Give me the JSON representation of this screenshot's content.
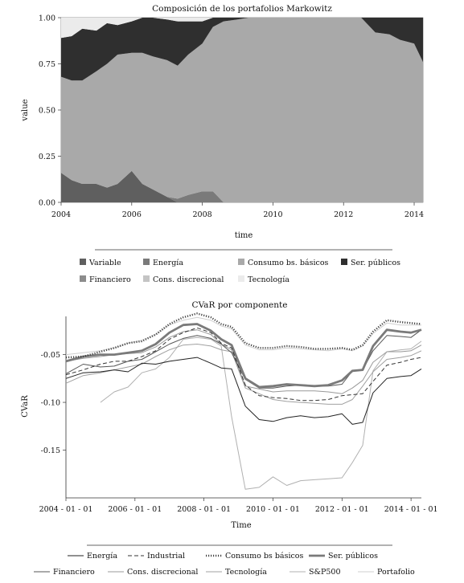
{
  "chart_data": [
    {
      "type": "area",
      "title": "Composición de los portafolios Markowitz",
      "xlabel": "time",
      "ylabel": "value",
      "ylim": [
        0,
        1
      ],
      "xlim": [
        2004,
        2014.25
      ],
      "x_ticks": [
        2004,
        2006,
        2008,
        2010,
        2012,
        2014
      ],
      "y_ticks": [
        "0.00",
        "0.25",
        "0.50",
        "0.75",
        "1.00"
      ],
      "stacked": true,
      "grid": false,
      "legend_placement": "bottom",
      "x": [
        2003.9,
        2004.3,
        2004.6,
        2005.0,
        2005.3,
        2005.6,
        2006.0,
        2006.3,
        2006.6,
        2007.0,
        2007.3,
        2007.6,
        2008.0,
        2008.3,
        2008.6,
        2009.0,
        2009.3,
        2009.6,
        2010.0,
        2010.5,
        2011.0,
        2011.5,
        2012.0,
        2012.5,
        2012.9,
        2013.3,
        2013.6,
        2014.0,
        2014.25
      ],
      "series": [
        {
          "name": "Variable",
          "color": "#5f5f5f",
          "values": [
            0.16,
            0.12,
            0.1,
            0.1,
            0.08,
            0.1,
            0.17,
            0.1,
            0.07,
            0.03,
            0.0,
            0.0,
            0.0,
            0.0,
            0.0,
            0.0,
            0.0,
            0.0,
            0.0,
            0.0,
            0.0,
            0.0,
            0.0,
            0.0,
            0.0,
            0.0,
            0.0,
            0.0,
            0.0
          ]
        },
        {
          "name": "Energía",
          "color": "#7a7a7a",
          "values": [
            0.0,
            0.0,
            0.0,
            0.0,
            0.0,
            0.0,
            0.0,
            0.0,
            0.0,
            0.0,
            0.02,
            0.04,
            0.06,
            0.06,
            0.0,
            0.0,
            0.0,
            0.0,
            0.0,
            0.0,
            0.0,
            0.0,
            0.0,
            0.0,
            0.0,
            0.0,
            0.0,
            0.0,
            0.0
          ]
        },
        {
          "name": "Consumo bs. básicos",
          "color": "#a9a9a9",
          "values": [
            0.52,
            0.54,
            0.56,
            0.61,
            0.67,
            0.7,
            0.64,
            0.71,
            0.72,
            0.74,
            0.72,
            0.76,
            0.8,
            0.89,
            0.98,
            0.99,
            1.0,
            1.0,
            1.0,
            1.0,
            1.0,
            1.0,
            1.0,
            1.0,
            0.92,
            0.91,
            0.88,
            0.86,
            0.76
          ]
        },
        {
          "name": "Ser. públicos",
          "color": "#2f2f2f",
          "values": [
            0.21,
            0.24,
            0.28,
            0.22,
            0.22,
            0.16,
            0.17,
            0.19,
            0.21,
            0.22,
            0.24,
            0.18,
            0.12,
            0.05,
            0.02,
            0.01,
            0.0,
            0.0,
            0.0,
            0.0,
            0.0,
            0.0,
            0.0,
            0.0,
            0.08,
            0.09,
            0.12,
            0.14,
            0.24
          ]
        },
        {
          "name": "Financiero",
          "color": "#8c8c8c",
          "values": [
            0.0,
            0.0,
            0.0,
            0.0,
            0.0,
            0.0,
            0.0,
            0.0,
            0.0,
            0.0,
            0.0,
            0.0,
            0.0,
            0.0,
            0.0,
            0.0,
            0.0,
            0.0,
            0.0,
            0.0,
            0.0,
            0.0,
            0.0,
            0.0,
            0.0,
            0.0,
            0.0,
            0.0,
            0.0
          ]
        },
        {
          "name": "Cons. discrecional",
          "color": "#c4c4c4",
          "values": [
            0.0,
            0.0,
            0.0,
            0.0,
            0.0,
            0.0,
            0.0,
            0.0,
            0.0,
            0.0,
            0.0,
            0.0,
            0.0,
            0.0,
            0.0,
            0.0,
            0.0,
            0.0,
            0.0,
            0.0,
            0.0,
            0.0,
            0.0,
            0.0,
            0.0,
            0.0,
            0.0,
            0.0,
            0.0
          ]
        },
        {
          "name": "Tecnología",
          "color": "#ebebeb",
          "values": [
            0.11,
            0.1,
            0.06,
            0.07,
            0.03,
            0.04,
            0.02,
            0.0,
            0.0,
            0.01,
            0.02,
            0.02,
            0.02,
            0.0,
            0.0,
            0.0,
            0.0,
            0.0,
            0.0,
            0.0,
            0.0,
            0.0,
            0.0,
            0.0,
            0.0,
            0.0,
            0.0,
            0.0,
            0.0
          ]
        }
      ]
    },
    {
      "type": "line",
      "title": "CVaR por componente",
      "xlabel": "Time",
      "ylabel": "CVaR",
      "ylim": [
        -0.2,
        -0.01
      ],
      "xlim": [
        2004,
        2014.3
      ],
      "x_ticks": [
        "2004 - 01 - 01",
        "2006 - 01 - 01",
        "2008 - 01 - 01",
        "2010 - 01 - 01",
        "2012 - 01 - 01",
        "2014 - 01 - 01"
      ],
      "y_ticks": [
        "-0.05",
        "-0.10",
        "-0.15"
      ],
      "grid": false,
      "legend_placement": "bottom",
      "x": [
        2004.0,
        2004.5,
        2005.0,
        2005.4,
        2005.8,
        2006.2,
        2006.6,
        2007.0,
        2007.4,
        2007.8,
        2008.2,
        2008.5,
        2008.8,
        2009.2,
        2009.6,
        2010.0,
        2010.4,
        2010.8,
        2011.2,
        2011.6,
        2012.0,
        2012.3,
        2012.6,
        2012.9,
        2013.3,
        2013.7,
        2014.0,
        2014.3
      ],
      "series": [
        {
          "name": "Energía",
          "color": "#222222",
          "dash": "solid",
          "values": [
            -0.075,
            -0.069,
            -0.068,
            -0.066,
            -0.068,
            -0.059,
            -0.06,
            -0.057,
            -0.055,
            -0.053,
            -0.059,
            -0.064,
            -0.065,
            -0.104,
            -0.118,
            -0.12,
            -0.116,
            -0.114,
            -0.116,
            -0.115,
            -0.112,
            -0.123,
            -0.121,
            -0.09,
            -0.075,
            -0.073,
            -0.072,
            -0.065
          ]
        },
        {
          "name": "Industrial",
          "color": "#333333",
          "dash": "dashed",
          "values": [
            -0.071,
            -0.066,
            -0.06,
            -0.057,
            -0.057,
            -0.052,
            -0.046,
            -0.034,
            -0.027,
            -0.022,
            -0.027,
            -0.038,
            -0.043,
            -0.082,
            -0.093,
            -0.095,
            -0.096,
            -0.098,
            -0.098,
            -0.097,
            -0.093,
            -0.092,
            -0.091,
            -0.078,
            -0.061,
            -0.058,
            -0.055,
            -0.053
          ]
        },
        {
          "name": "Consumo bs básicos",
          "color": "#444444",
          "dash": "dotted",
          "values": [
            -0.053,
            -0.052,
            -0.047,
            -0.043,
            -0.038,
            -0.036,
            -0.029,
            -0.018,
            -0.011,
            -0.007,
            -0.011,
            -0.018,
            -0.021,
            -0.038,
            -0.043,
            -0.043,
            -0.041,
            -0.042,
            -0.044,
            -0.044,
            -0.043,
            -0.045,
            -0.04,
            -0.026,
            -0.014,
            -0.016,
            -0.017,
            -0.018
          ]
        },
        {
          "name": "Ser. públicos",
          "color": "#7a7a7a",
          "dash": "thick",
          "values": [
            -0.057,
            -0.052,
            -0.05,
            -0.05,
            -0.048,
            -0.046,
            -0.039,
            -0.027,
            -0.019,
            -0.018,
            -0.025,
            -0.034,
            -0.04,
            -0.075,
            -0.084,
            -0.083,
            -0.081,
            -0.082,
            -0.083,
            -0.082,
            -0.077,
            -0.067,
            -0.066,
            -0.041,
            -0.024,
            -0.026,
            -0.027,
            -0.024
          ]
        },
        {
          "name": "Financiero",
          "color": "#555555",
          "dash": "solid",
          "values": [
            -0.07,
            -0.06,
            -0.063,
            -0.062,
            -0.057,
            -0.055,
            -0.047,
            -0.039,
            -0.033,
            -0.03,
            -0.033,
            -0.039,
            -0.048,
            -0.076,
            -0.085,
            -0.085,
            -0.083,
            -0.082,
            -0.083,
            -0.083,
            -0.081,
            -0.067,
            -0.066,
            -0.046,
            -0.03,
            -0.031,
            -0.032,
            -0.024
          ]
        },
        {
          "name": "Cons. discrecional",
          "color": "#999999",
          "dash": "solid",
          "values": [
            -0.057,
            -0.054,
            -0.052,
            -0.05,
            -0.049,
            -0.048,
            -0.042,
            -0.032,
            -0.026,
            -0.024,
            -0.029,
            -0.039,
            -0.045,
            -0.083,
            -0.086,
            -0.089,
            -0.088,
            -0.088,
            -0.088,
            -0.089,
            -0.091,
            -0.085,
            -0.077,
            -0.058,
            -0.047,
            -0.047,
            -0.046,
            -0.04
          ]
        },
        {
          "name": "Tecnología",
          "color": "#a0a0a0",
          "dash": "solid",
          "values": [
            -0.08,
            -0.072,
            -0.069,
            -0.066,
            -0.063,
            -0.06,
            -0.052,
            -0.045,
            -0.04,
            -0.039,
            -0.041,
            -0.045,
            -0.047,
            -0.085,
            -0.091,
            -0.097,
            -0.099,
            -0.1,
            -0.101,
            -0.102,
            -0.102,
            -0.097,
            -0.083,
            -0.068,
            -0.055,
            -0.053,
            -0.051,
            -0.046
          ]
        },
        {
          "name": "S&P500",
          "color": "#b0b0b0",
          "dash": "solid",
          "values": [
            null,
            null,
            -0.1,
            -0.089,
            -0.084,
            -0.069,
            -0.065,
            -0.053,
            -0.034,
            -0.032,
            -0.034,
            -0.041,
            -0.115,
            -0.191,
            -0.189,
            -0.178,
            -0.187,
            -0.182,
            -0.181,
            -0.18,
            -0.179,
            -0.163,
            -0.145,
            -0.067,
            -0.047,
            -0.045,
            -0.044,
            -0.036
          ]
        },
        {
          "name": "Portafolio",
          "color": "#cfcfcf",
          "dash": "solid",
          "values": [
            -0.05,
            -0.048,
            -0.046,
            -0.043,
            -0.038,
            -0.035,
            -0.029,
            -0.019,
            -0.014,
            -0.011,
            -0.014,
            -0.02,
            -0.023,
            -0.04,
            -0.045,
            -0.045,
            -0.043,
            -0.044,
            -0.045,
            -0.046,
            -0.044,
            -0.046,
            -0.041,
            -0.028,
            -0.017,
            -0.019,
            -0.019,
            -0.019
          ]
        }
      ]
    }
  ]
}
